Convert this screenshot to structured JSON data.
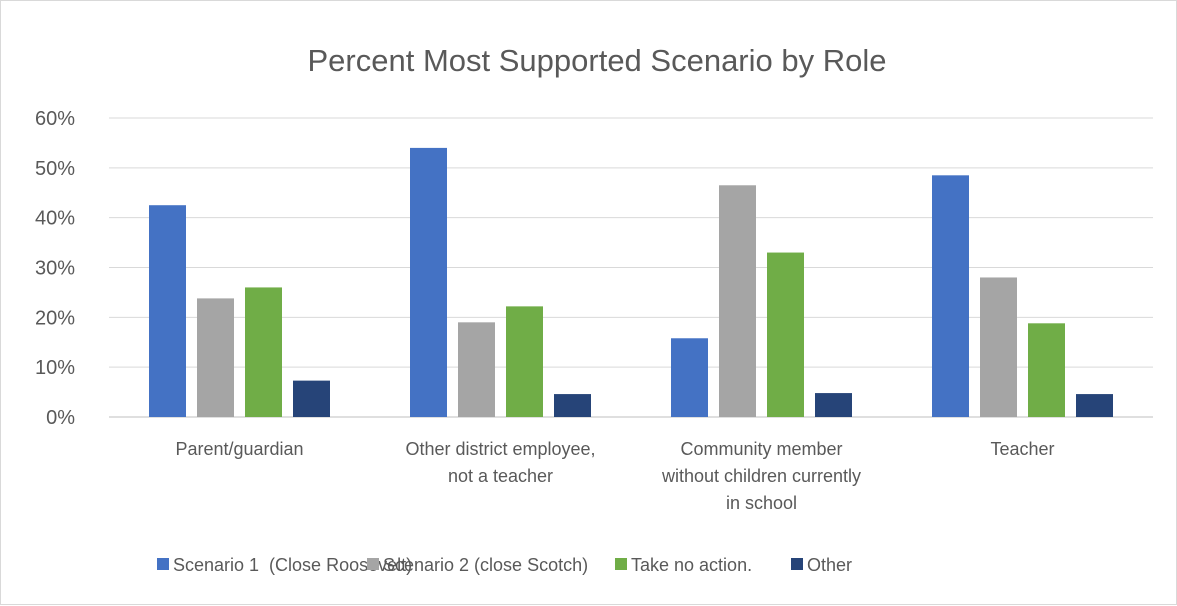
{
  "chart_data": {
    "type": "bar",
    "title": "Percent Most Supported Scenario by Role",
    "xlabel": "",
    "ylabel": "",
    "ylim": [
      0,
      60
    ],
    "yticks": [
      "0%",
      "10%",
      "20%",
      "30%",
      "40%",
      "50%",
      "60%"
    ],
    "grid": true,
    "legend_position": "bottom",
    "categories": [
      [
        "Parent/guardian"
      ],
      [
        "Other district employee,",
        "not a teacher"
      ],
      [
        "Community member",
        "without children currently",
        "in school"
      ],
      [
        "Teacher"
      ]
    ],
    "series": [
      {
        "name": "Scenario 1  (Close Roosevelt)",
        "color": "#4472c4",
        "values": [
          42.5,
          54,
          15.8,
          48.5
        ]
      },
      {
        "name": "Scenario 2 (close Scotch)",
        "color": "#a5a5a5",
        "values": [
          23.8,
          19,
          46.5,
          28
        ]
      },
      {
        "name": "Take no action.",
        "color": "#70ad47",
        "values": [
          26,
          22.2,
          33,
          18.8
        ]
      },
      {
        "name": "Other",
        "color": "#264478",
        "values": [
          7.3,
          4.6,
          4.8,
          4.6
        ]
      }
    ]
  }
}
